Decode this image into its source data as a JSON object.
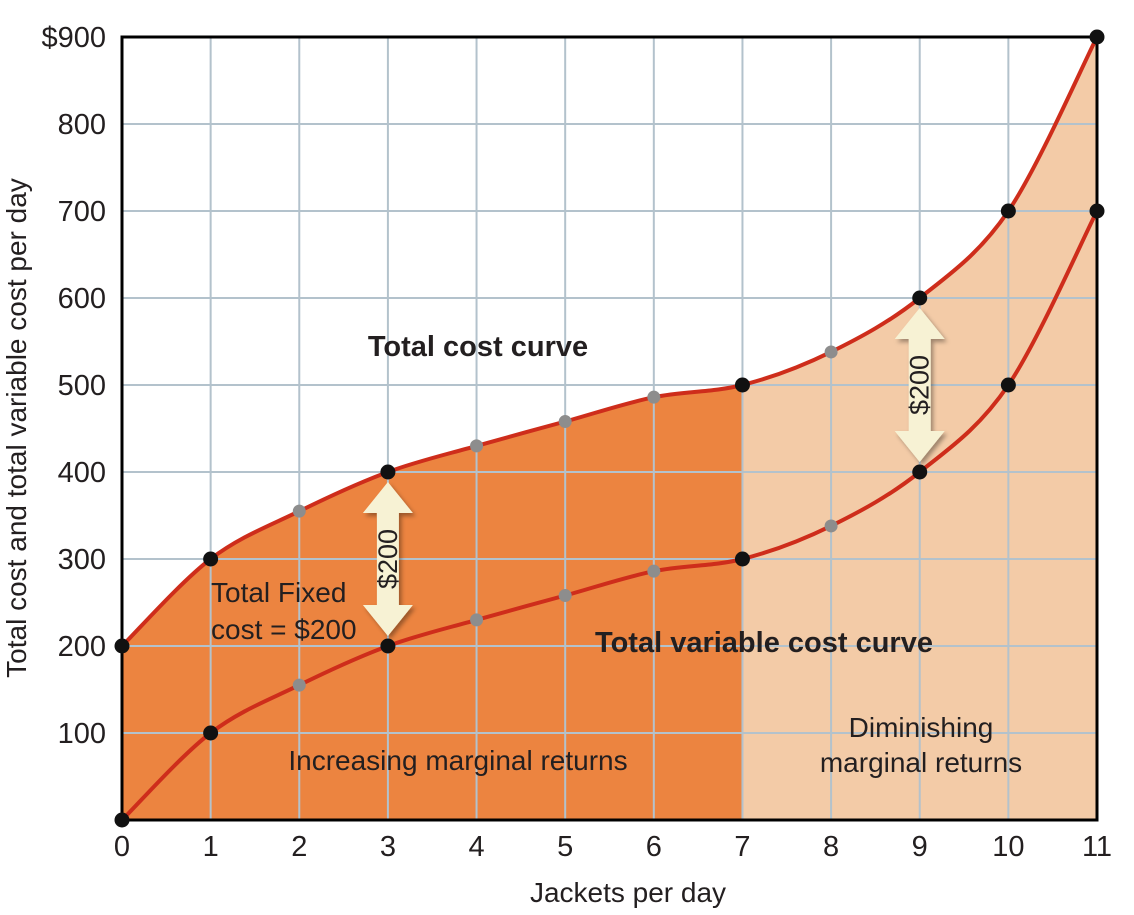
{
  "chart_data": {
    "type": "line",
    "title": "",
    "xlabel": "Jackets per day",
    "ylabel": "Total cost and total variable cost per day",
    "xlim": [
      0,
      11
    ],
    "ylim": [
      0,
      900
    ],
    "grid": true,
    "legend": "none",
    "x": [
      0,
      1,
      2,
      3,
      4,
      5,
      6,
      7,
      8,
      9,
      10,
      11
    ],
    "x_tick_labels": [
      "0",
      "1",
      "2",
      "3",
      "4",
      "5",
      "6",
      "7",
      "8",
      "9",
      "10",
      "11"
    ],
    "y_ticks": [
      {
        "value": 900,
        "label": "$900"
      },
      {
        "value": 800,
        "label": "800"
      },
      {
        "value": 700,
        "label": "700"
      },
      {
        "value": 600,
        "label": "600"
      },
      {
        "value": 500,
        "label": "500"
      },
      {
        "value": 400,
        "label": "400"
      },
      {
        "value": 300,
        "label": "300"
      },
      {
        "value": 200,
        "label": "200"
      },
      {
        "value": 100,
        "label": "100"
      }
    ],
    "series": [
      {
        "name": "Total cost",
        "label": "Total cost curve",
        "values": [
          200,
          300,
          355,
          400,
          430,
          458,
          486,
          500,
          538,
          600,
          700,
          900
        ],
        "major_points_x": [
          0,
          1,
          3,
          7,
          9,
          10,
          11
        ]
      },
      {
        "name": "Total variable cost",
        "label": "Total variable cost curve",
        "values": [
          0,
          100,
          155,
          200,
          230,
          258,
          286,
          300,
          338,
          400,
          500,
          700
        ],
        "major_points_x": [
          0,
          1,
          3,
          7,
          9,
          10,
          11
        ]
      }
    ],
    "fixed_cost": 200,
    "regions": [
      {
        "name": "increasing-marginal-returns",
        "from_x": 0,
        "to_x": 7
      },
      {
        "name": "diminishing-marginal-returns",
        "from_x": 7,
        "to_x": 11
      }
    ],
    "annotations": {
      "fixed_cost_lines": [
        "Total Fixed",
        "cost = $200"
      ],
      "increasing_label": "Increasing marginal returns",
      "diminishing_lines": [
        "Diminishing",
        "marginal returns"
      ],
      "arrows": [
        {
          "x": 3,
          "from_value": 200,
          "to_value": 400,
          "label": "$200"
        },
        {
          "x": 9,
          "from_value": 400,
          "to_value": 600,
          "label": "$200"
        }
      ]
    },
    "colors": {
      "curve": "#ce2d1b",
      "region_increasing": "#ec8440",
      "region_diminishing": "#f3cba7",
      "grid": "#b3c2cc",
      "border": "#000000",
      "point_major": "#111111",
      "point_minor": "#8d8d8d",
      "arrow_fill": "#f7f2d4",
      "text": "#231f20"
    }
  }
}
